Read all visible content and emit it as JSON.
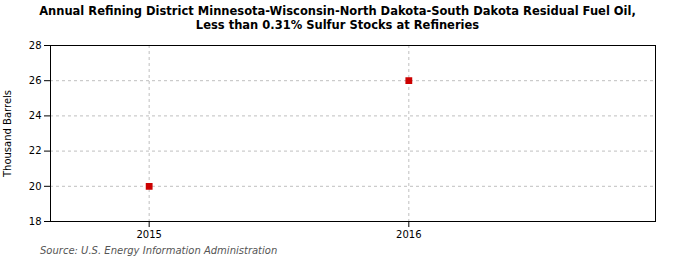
{
  "chart_data": {
    "type": "scatter",
    "title": "Annual Refining District Minnesota-Wisconsin-North Dakota-South Dakota Residual Fuel Oil,\nLess than 0.31% Sulfur Stocks at Refineries",
    "ylabel": "Thousand Barrels",
    "caption": "Source: U.S. Energy Information Administration",
    "x": [
      2015,
      2016
    ],
    "values": [
      20,
      26
    ],
    "xlim": [
      2014.62,
      2016.95
    ],
    "ylim": [
      18,
      28
    ],
    "xticks": [
      2015,
      2016
    ],
    "yticks": [
      18,
      20,
      22,
      24,
      26,
      28
    ],
    "color": "#cc0000",
    "marker": "square",
    "grid": true
  }
}
